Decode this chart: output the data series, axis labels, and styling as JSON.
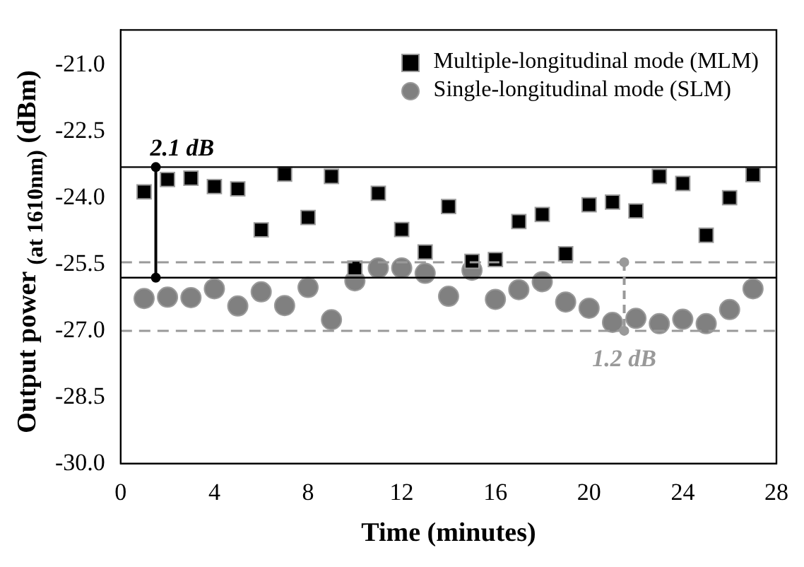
{
  "chart_data": {
    "type": "scatter",
    "xlabel": "Time (minutes)",
    "ylabel": "Output power $_{(at 1610nm)}$ (dBm)",
    "xlim": [
      0,
      28
    ],
    "xticks": [
      0,
      4,
      8,
      12,
      16,
      20,
      24,
      28
    ],
    "ylim": [
      -30,
      -20.2
    ],
    "yticks": [
      {
        "value": -30,
        "label": "-30.0"
      },
      -28.5,
      {
        "value": -27,
        "label": "-27.0"
      },
      -25.5,
      {
        "value": -24,
        "label": "-24.0"
      },
      -22.5,
      {
        "value": -21,
        "label": "-21.0"
      }
    ],
    "x": [
      1,
      2,
      3,
      4,
      5,
      6,
      7,
      8,
      9,
      10,
      11,
      12,
      13,
      14,
      15,
      16,
      17,
      18,
      19,
      20,
      21,
      22,
      23,
      24,
      25,
      26,
      27
    ],
    "series": [
      {
        "name": "Multiple-longitudinal mode (MLM)",
        "color": "#000000",
        "marker": "square",
        "values": [
          -23.86,
          -23.58,
          -23.55,
          -23.74,
          -23.79,
          -24.72,
          -23.46,
          -24.44,
          -23.51,
          -25.58,
          -23.89,
          -24.71,
          -25.22,
          -24.19,
          -25.43,
          -25.39,
          -24.53,
          -24.37,
          -25.26,
          -24.15,
          -24.09,
          -24.29,
          -23.51,
          -23.67,
          -24.84,
          -23.99,
          -23.47
        ]
      },
      {
        "name": "Single-longitudinal mode (SLM)",
        "color": "#808080",
        "marker": "circle",
        "values": [
          -26.27,
          -26.24,
          -26.25,
          -26.05,
          -26.44,
          -26.12,
          -26.43,
          -26.02,
          -26.75,
          -25.87,
          -25.58,
          -25.58,
          -25.7,
          -26.22,
          -25.63,
          -26.29,
          -26.07,
          -25.89,
          -26.35,
          -26.49,
          -26.81,
          -26.72,
          -26.84,
          -26.74,
          -26.84,
          -26.52,
          -26.05
        ]
      }
    ],
    "ref_lines": [
      {
        "axis": "y",
        "value": -23.3,
        "color": "#000000",
        "line_style": "solid"
      },
      {
        "axis": "y",
        "value": -25.8,
        "color": "#000000",
        "line_style": "solid"
      },
      {
        "axis": "y",
        "value": -25.45,
        "color": "#999999",
        "line_style": "dashed"
      },
      {
        "axis": "y",
        "value": -27.0,
        "color": "#999999",
        "line_style": "dashed"
      }
    ],
    "annotations": [
      {
        "text": "2.1 dB",
        "x": 1.5,
        "y": -23.3
      },
      {
        "text": "1.2 dB",
        "x": 21.5,
        "y": -27.0
      }
    ],
    "legend": "top right",
    "grid": false
  }
}
